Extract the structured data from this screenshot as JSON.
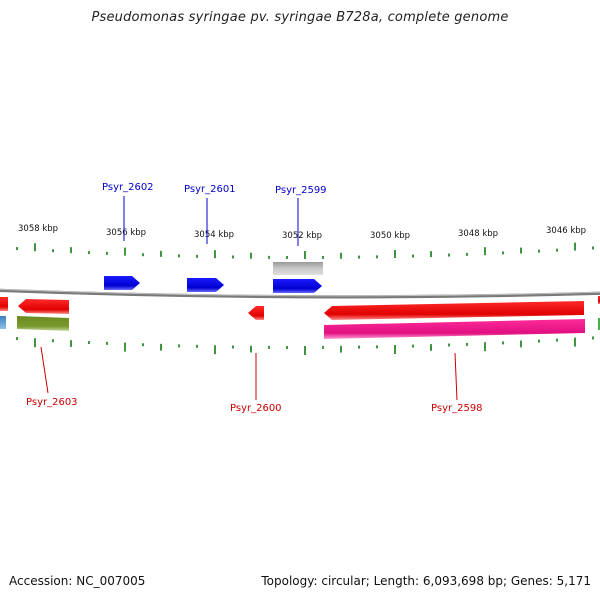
{
  "title": "Pseudomonas syringae pv. syringae B728a, complete genome",
  "footer": {
    "accession": "Accession: NC_007005",
    "summary": "Topology: circular; Length: 6,093,698 bp; Genes: 5,171"
  },
  "scale_labels": [
    "3058 kbp",
    "3056 kbp",
    "3054 kbp",
    "3052 kbp",
    "3050 kbp",
    "3048 kbp",
    "3046 kbp"
  ],
  "genes_forward": [
    {
      "label": "Psyr_2602",
      "color": "#0000dd"
    },
    {
      "label": "Psyr_2601",
      "color": "#0000dd"
    },
    {
      "label": "Psyr_2599",
      "color": "#0000dd"
    }
  ],
  "genes_reverse": [
    {
      "label": "Psyr_2603",
      "color": "#cc0000"
    },
    {
      "label": "Psyr_2600",
      "color": "#cc0000"
    },
    {
      "label": "Psyr_2598",
      "color": "#cc0000"
    }
  ],
  "colors": {
    "forward_gene": "#1010e8",
    "reverse_gene": "#ee1111",
    "tick": "#2a8a2a",
    "backbone": "#888888",
    "grey_feature": "#b0b0b0",
    "olive_feature": "#6e8e2a",
    "magenta_feature": "#e8158a"
  }
}
